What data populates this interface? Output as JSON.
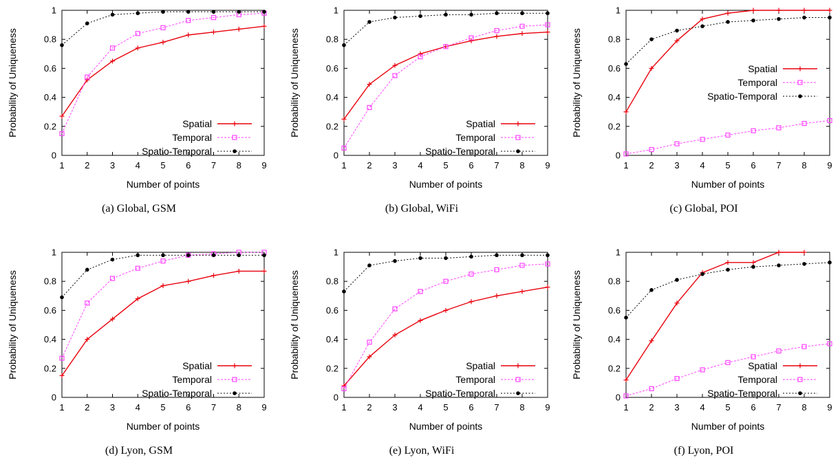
{
  "chart_data": [
    {
      "type": "line",
      "caption": "(a) Global, GSM",
      "xlabel": "Number of points",
      "ylabel": "Probability of Uniqueness",
      "x": [
        1,
        2,
        3,
        4,
        5,
        6,
        7,
        8,
        9
      ],
      "xlim": [
        1,
        9
      ],
      "ylim": [
        0,
        1
      ],
      "yticks": [
        "0",
        "0.2",
        "0.4",
        "0.6",
        "0.8",
        "1"
      ],
      "legend_position": "bottom-right",
      "series": [
        {
          "name": "Spatial",
          "color": "#e8000b",
          "marker": "plus",
          "values": [
            0.27,
            0.52,
            0.65,
            0.74,
            0.78,
            0.83,
            0.85,
            0.87,
            0.89
          ]
        },
        {
          "name": "Temporal",
          "color": "#ff44ff",
          "marker": "square",
          "values": [
            0.15,
            0.54,
            0.74,
            0.84,
            0.88,
            0.93,
            0.95,
            0.97,
            0.98
          ]
        },
        {
          "name": "Spatio-Temporal",
          "color": "#000000",
          "marker": "dot",
          "values": [
            0.76,
            0.91,
            0.97,
            0.98,
            0.99,
            0.99,
            0.99,
            0.99,
            0.99
          ]
        }
      ]
    },
    {
      "type": "line",
      "caption": "(b) Global, WiFi",
      "xlabel": "Number of points",
      "ylabel": "Probability of Uniqueness",
      "x": [
        1,
        2,
        3,
        4,
        5,
        6,
        7,
        8,
        9
      ],
      "xlim": [
        1,
        9
      ],
      "ylim": [
        0,
        1
      ],
      "yticks": [
        "0",
        "0.2",
        "0.4",
        "0.6",
        "0.8",
        "1"
      ],
      "legend_position": "bottom-right",
      "series": [
        {
          "name": "Spatial",
          "color": "#e8000b",
          "marker": "plus",
          "values": [
            0.25,
            0.49,
            0.62,
            0.7,
            0.75,
            0.79,
            0.82,
            0.84,
            0.85
          ]
        },
        {
          "name": "Temporal",
          "color": "#ff44ff",
          "marker": "square",
          "values": [
            0.05,
            0.33,
            0.55,
            0.68,
            0.75,
            0.81,
            0.86,
            0.89,
            0.9
          ]
        },
        {
          "name": "Spatio-Temporal",
          "color": "#000000",
          "marker": "dot",
          "values": [
            0.76,
            0.92,
            0.95,
            0.96,
            0.97,
            0.97,
            0.98,
            0.98,
            0.98
          ]
        }
      ]
    },
    {
      "type": "line",
      "caption": "(c) Global, POI",
      "xlabel": "Number of points",
      "ylabel": "Probability of Uniqueness",
      "x": [
        1,
        2,
        3,
        4,
        5,
        6,
        7,
        8,
        9
      ],
      "xlim": [
        1,
        9
      ],
      "ylim": [
        0,
        1
      ],
      "yticks": [
        "0",
        "0.2",
        "0.4",
        "0.6",
        "0.8",
        "1"
      ],
      "legend_position": "middle-right",
      "series": [
        {
          "name": "Spatial",
          "color": "#e8000b",
          "marker": "plus",
          "values": [
            0.3,
            0.6,
            0.79,
            0.94,
            0.98,
            1.0,
            1.0,
            1.0,
            1.0
          ]
        },
        {
          "name": "Temporal",
          "color": "#ff44ff",
          "marker": "square",
          "values": [
            0.01,
            0.04,
            0.08,
            0.11,
            0.14,
            0.17,
            0.19,
            0.22,
            0.24
          ]
        },
        {
          "name": "Spatio-Temporal",
          "color": "#000000",
          "marker": "dot",
          "values": [
            0.63,
            0.8,
            0.86,
            0.89,
            0.92,
            0.93,
            0.94,
            0.95,
            0.95
          ]
        }
      ]
    },
    {
      "type": "line",
      "caption": "(d) Lyon, GSM",
      "xlabel": "Number of points",
      "ylabel": "Probability of Uniqueness",
      "x": [
        1,
        2,
        3,
        4,
        5,
        6,
        7,
        8,
        9
      ],
      "xlim": [
        1,
        9
      ],
      "ylim": [
        0,
        1
      ],
      "yticks": [
        "0",
        "0.2",
        "0.4",
        "0.6",
        "0.8",
        "1"
      ],
      "legend_position": "bottom-right",
      "series": [
        {
          "name": "Spatial",
          "color": "#e8000b",
          "marker": "plus",
          "values": [
            0.15,
            0.4,
            0.54,
            0.68,
            0.77,
            0.8,
            0.84,
            0.87,
            0.87
          ]
        },
        {
          "name": "Temporal",
          "color": "#ff44ff",
          "marker": "square",
          "values": [
            0.27,
            0.65,
            0.82,
            0.89,
            0.94,
            0.98,
            0.99,
            1.0,
            1.0
          ]
        },
        {
          "name": "Spatio-Temporal",
          "color": "#000000",
          "marker": "dot",
          "values": [
            0.69,
            0.88,
            0.95,
            0.98,
            0.98,
            0.98,
            0.98,
            0.98,
            0.98
          ]
        }
      ]
    },
    {
      "type": "line",
      "caption": "(e) Lyon, WiFi",
      "xlabel": "Number of points",
      "ylabel": "Probability of Uniqueness",
      "x": [
        1,
        2,
        3,
        4,
        5,
        6,
        7,
        8,
        9
      ],
      "xlim": [
        1,
        9
      ],
      "ylim": [
        0,
        1
      ],
      "yticks": [
        "0",
        "0.2",
        "0.4",
        "0.6",
        "0.8",
        "1"
      ],
      "legend_position": "bottom-right",
      "series": [
        {
          "name": "Spatial",
          "color": "#e8000b",
          "marker": "plus",
          "values": [
            0.08,
            0.28,
            0.43,
            0.53,
            0.6,
            0.66,
            0.7,
            0.73,
            0.76
          ]
        },
        {
          "name": "Temporal",
          "color": "#ff44ff",
          "marker": "square",
          "values": [
            0.06,
            0.38,
            0.61,
            0.73,
            0.8,
            0.85,
            0.88,
            0.91,
            0.92
          ]
        },
        {
          "name": "Spatio-Temporal",
          "color": "#000000",
          "marker": "dot",
          "values": [
            0.73,
            0.91,
            0.94,
            0.96,
            0.96,
            0.97,
            0.98,
            0.98,
            0.98
          ]
        }
      ]
    },
    {
      "type": "line",
      "caption": "(f) Lyon, POI",
      "xlabel": "Number of points",
      "ylabel": "Probability of Uniqueness",
      "x": [
        1,
        2,
        3,
        4,
        5,
        6,
        7,
        8,
        9
      ],
      "xlim": [
        1,
        9
      ],
      "ylim": [
        0,
        1
      ],
      "yticks": [
        "0",
        "0.2",
        "0.4",
        "0.6",
        "0.8",
        "1"
      ],
      "legend_position": "bottom-right",
      "series": [
        {
          "name": "Spatial",
          "color": "#e8000b",
          "marker": "plus",
          "values": [
            0.12,
            0.39,
            0.65,
            0.86,
            0.93,
            0.93,
            1.0,
            1.0,
            null
          ]
        },
        {
          "name": "Temporal",
          "color": "#ff44ff",
          "marker": "square",
          "values": [
            0.01,
            0.06,
            0.13,
            0.19,
            0.24,
            0.28,
            0.32,
            0.35,
            0.37
          ]
        },
        {
          "name": "Spatio-Temporal",
          "color": "#000000",
          "marker": "dot",
          "values": [
            0.55,
            0.74,
            0.81,
            0.85,
            0.88,
            0.9,
            0.91,
            0.92,
            0.93
          ]
        }
      ]
    }
  ]
}
